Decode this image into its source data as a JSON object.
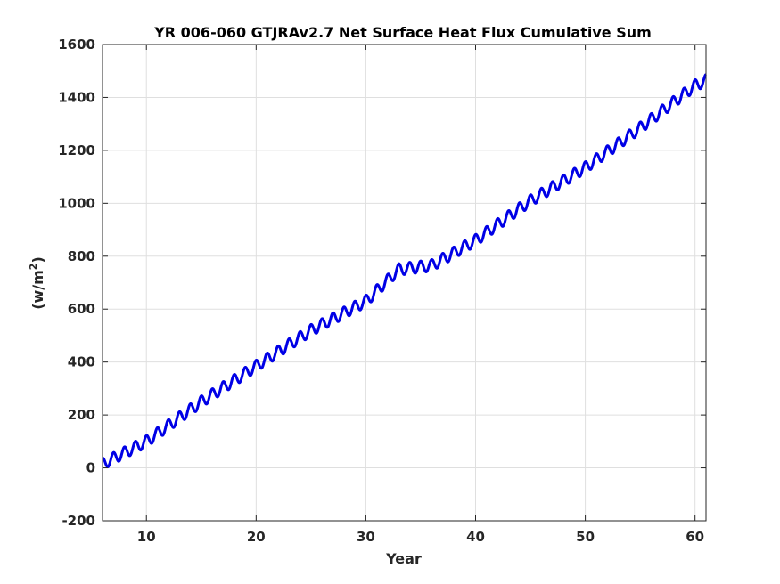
{
  "chart_data": {
    "type": "line",
    "title": "YR 006-060 GTJRAv2.7 Net Surface Heat Flux  Cumulative Sum",
    "xlabel": "Year",
    "ylabel_base": "(w/m",
    "ylabel_sup": "2",
    "ylabel_close": ")",
    "xlim": [
      6,
      61
    ],
    "ylim": [
      -200,
      1600
    ],
    "xticks": [
      10,
      20,
      30,
      40,
      50,
      60
    ],
    "yticks": [
      -200,
      0,
      200,
      400,
      600,
      800,
      1000,
      1200,
      1400,
      1600
    ],
    "grid": true,
    "legend": "none",
    "series": [
      {
        "color": "#0000e6",
        "seasonal_amplitude": 22,
        "annual_mean_points": {
          "x": [
            6,
            10,
            15,
            20,
            25,
            30,
            33,
            36,
            40,
            45,
            50,
            55,
            60,
            61
          ],
          "y": [
            15,
            100,
            250,
            385,
            520,
            630,
            750,
            765,
            860,
            1010,
            1135,
            1285,
            1445,
            1465
          ]
        }
      }
    ]
  }
}
